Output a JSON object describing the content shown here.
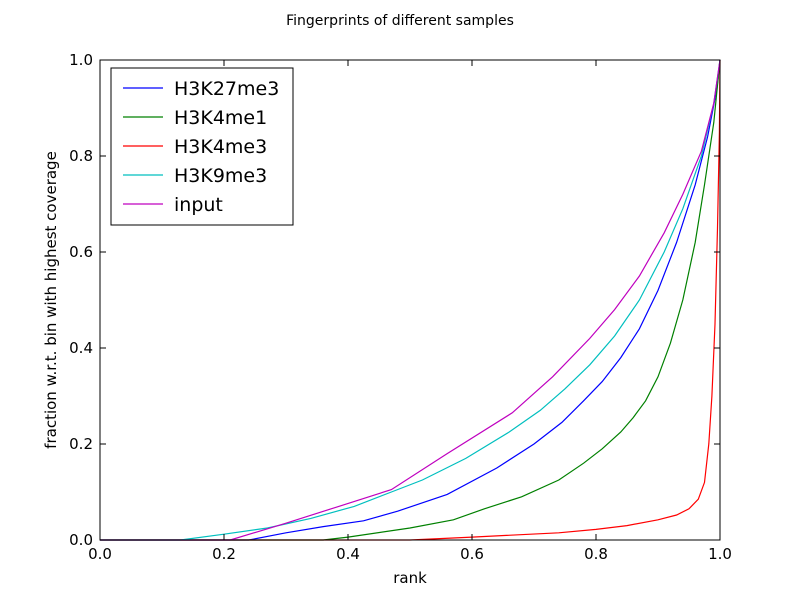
{
  "chart_data": {
    "type": "line",
    "title": "Fingerprints of different samples",
    "xlabel": "rank",
    "ylabel": "fraction w.r.t. bin with highest coverage",
    "xlim": [
      0.0,
      1.0
    ],
    "ylim": [
      0.0,
      1.0
    ],
    "xticks": [
      "0.0",
      "0.2",
      "0.4",
      "0.6",
      "0.8",
      "1.0"
    ],
    "yticks": [
      "0.0",
      "0.2",
      "0.4",
      "0.6",
      "0.8",
      "1.0"
    ],
    "grid": false,
    "legend_position": "top-left",
    "series": [
      {
        "name": "H3K27me3",
        "color": "#0000ff",
        "points": [
          [
            0.0,
            0.0
          ],
          [
            0.24,
            0.0
          ],
          [
            0.3,
            0.015
          ],
          [
            0.36,
            0.028
          ],
          [
            0.425,
            0.04
          ],
          [
            0.48,
            0.06
          ],
          [
            0.56,
            0.095
          ],
          [
            0.64,
            0.15
          ],
          [
            0.7,
            0.2
          ],
          [
            0.745,
            0.245
          ],
          [
            0.78,
            0.29
          ],
          [
            0.81,
            0.33
          ],
          [
            0.84,
            0.38
          ],
          [
            0.87,
            0.44
          ],
          [
            0.9,
            0.52
          ],
          [
            0.93,
            0.62
          ],
          [
            0.96,
            0.74
          ],
          [
            0.98,
            0.84
          ],
          [
            0.995,
            0.94
          ],
          [
            1.0,
            1.0
          ]
        ]
      },
      {
        "name": "H3K4me1",
        "color": "#008000",
        "points": [
          [
            0.0,
            0.0
          ],
          [
            0.36,
            0.0
          ],
          [
            0.4,
            0.006
          ],
          [
            0.5,
            0.025
          ],
          [
            0.57,
            0.042
          ],
          [
            0.62,
            0.065
          ],
          [
            0.68,
            0.09
          ],
          [
            0.74,
            0.125
          ],
          [
            0.78,
            0.16
          ],
          [
            0.81,
            0.19
          ],
          [
            0.84,
            0.225
          ],
          [
            0.86,
            0.255
          ],
          [
            0.88,
            0.29
          ],
          [
            0.9,
            0.34
          ],
          [
            0.92,
            0.41
          ],
          [
            0.94,
            0.5
          ],
          [
            0.96,
            0.62
          ],
          [
            0.975,
            0.74
          ],
          [
            0.99,
            0.87
          ],
          [
            1.0,
            1.0
          ]
        ]
      },
      {
        "name": "H3K4me3",
        "color": "#ff0000",
        "points": [
          [
            0.0,
            0.0
          ],
          [
            0.5,
            0.0
          ],
          [
            0.6,
            0.006
          ],
          [
            0.74,
            0.015
          ],
          [
            0.8,
            0.022
          ],
          [
            0.85,
            0.03
          ],
          [
            0.9,
            0.042
          ],
          [
            0.93,
            0.052
          ],
          [
            0.95,
            0.065
          ],
          [
            0.965,
            0.085
          ],
          [
            0.975,
            0.12
          ],
          [
            0.982,
            0.2
          ],
          [
            0.987,
            0.3
          ],
          [
            0.992,
            0.45
          ],
          [
            0.996,
            0.65
          ],
          [
            0.999,
            0.85
          ],
          [
            1.0,
            1.0
          ]
        ]
      },
      {
        "name": "H3K9me3",
        "color": "#00bfbf",
        "points": [
          [
            0.0,
            0.0
          ],
          [
            0.13,
            0.0
          ],
          [
            0.2,
            0.012
          ],
          [
            0.27,
            0.025
          ],
          [
            0.34,
            0.045
          ],
          [
            0.41,
            0.07
          ],
          [
            0.47,
            0.1
          ],
          [
            0.52,
            0.125
          ],
          [
            0.59,
            0.17
          ],
          [
            0.66,
            0.225
          ],
          [
            0.71,
            0.27
          ],
          [
            0.75,
            0.315
          ],
          [
            0.79,
            0.365
          ],
          [
            0.83,
            0.425
          ],
          [
            0.87,
            0.5
          ],
          [
            0.91,
            0.6
          ],
          [
            0.94,
            0.69
          ],
          [
            0.97,
            0.8
          ],
          [
            0.99,
            0.91
          ],
          [
            1.0,
            1.0
          ]
        ]
      },
      {
        "name": "input",
        "color": "#bf00bf",
        "points": [
          [
            0.0,
            0.0
          ],
          [
            0.21,
            0.0
          ],
          [
            0.3,
            0.035
          ],
          [
            0.38,
            0.068
          ],
          [
            0.47,
            0.105
          ],
          [
            0.56,
            0.18
          ],
          [
            0.665,
            0.265
          ],
          [
            0.73,
            0.34
          ],
          [
            0.79,
            0.42
          ],
          [
            0.83,
            0.48
          ],
          [
            0.87,
            0.55
          ],
          [
            0.91,
            0.64
          ],
          [
            0.94,
            0.72
          ],
          [
            0.97,
            0.81
          ],
          [
            0.99,
            0.91
          ],
          [
            1.0,
            1.0
          ]
        ]
      }
    ]
  }
}
